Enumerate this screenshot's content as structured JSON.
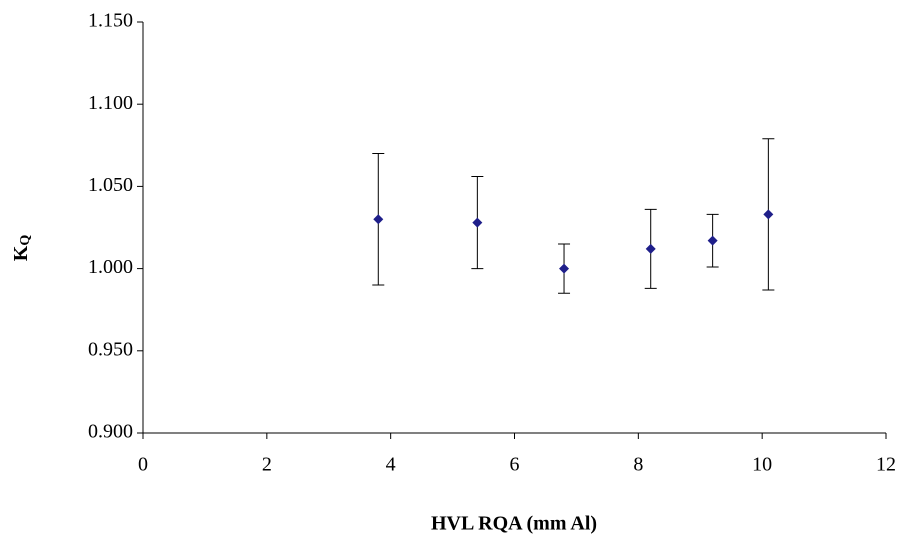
{
  "chart_data": {
    "type": "scatter",
    "x_label": "HVL RQA (mm Al)",
    "y_label": "K",
    "y_label_sub": "Q",
    "x": [
      3.8,
      5.4,
      6.8,
      8.2,
      9.2,
      10.1
    ],
    "series": [
      {
        "color": "#1f1f8a",
        "values": [
          1.03,
          1.028,
          1.0,
          1.012,
          1.017,
          1.033
        ],
        "errors": [
          0.04,
          0.028,
          0.015,
          0.024,
          0.016,
          0.046
        ]
      }
    ],
    "xlim": [
      0,
      12
    ],
    "xticks": [
      0,
      2,
      4,
      6,
      8,
      10,
      12
    ],
    "ylim": [
      0.9,
      1.15
    ],
    "yticks": [
      {
        "value": 0.9,
        "label": "0.900"
      },
      {
        "value": 0.95,
        "label": "0.950"
      },
      {
        "value": 1.0,
        "label": "1.000"
      },
      {
        "value": 1.05,
        "label": "1.050"
      },
      {
        "value": 1.1,
        "label": "1.100"
      },
      {
        "value": 1.15,
        "label": "1.150"
      }
    ],
    "grid": false
  }
}
